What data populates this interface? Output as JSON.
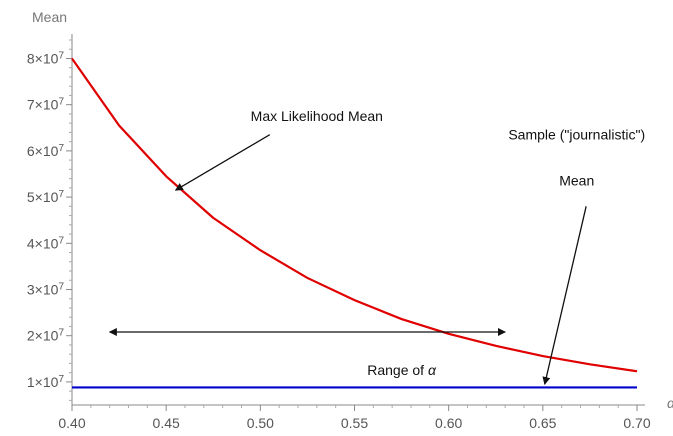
{
  "chart_data": {
    "type": "line",
    "ylabel": "Mean",
    "xlabel": "α",
    "xlim": [
      0.4,
      0.7
    ],
    "ylim": [
      5000000,
      84000000
    ],
    "x_ticks": [
      {
        "value": 0.4,
        "label": "0.40"
      },
      {
        "value": 0.45,
        "label": "0.45"
      },
      {
        "value": 0.5,
        "label": "0.50"
      },
      {
        "value": 0.55,
        "label": "0.55"
      },
      {
        "value": 0.6,
        "label": "0.60"
      },
      {
        "value": 0.65,
        "label": "0.65"
      },
      {
        "value": 0.7,
        "label": "0.70"
      }
    ],
    "y_ticks": [
      {
        "value": 10000000,
        "mant": "1",
        "exp": "7"
      },
      {
        "value": 20000000,
        "mant": "2",
        "exp": "7"
      },
      {
        "value": 30000000,
        "mant": "3",
        "exp": "7"
      },
      {
        "value": 40000000,
        "mant": "4",
        "exp": "7"
      },
      {
        "value": 50000000,
        "mant": "5",
        "exp": "7"
      },
      {
        "value": 60000000,
        "mant": "6",
        "exp": "7"
      },
      {
        "value": 70000000,
        "mant": "7",
        "exp": "7"
      },
      {
        "value": 80000000,
        "mant": "8",
        "exp": "7"
      }
    ],
    "series": [
      {
        "color": "#e00000",
        "x": [
          0.4,
          0.425,
          0.45,
          0.475,
          0.5,
          0.525,
          0.55,
          0.575,
          0.6,
          0.625,
          0.65,
          0.675,
          0.7
        ],
        "values": [
          80000000,
          65500000,
          54500000,
          45500000,
          38500000,
          32500000,
          27700000,
          23600000,
          20400000,
          17800000,
          15600000,
          13800000,
          12300000
        ]
      },
      {
        "color": "#0000cc",
        "x": [
          0.4,
          0.7
        ],
        "values": [
          8800000,
          8800000
        ]
      }
    ],
    "annotations": {
      "max_likelihood": {
        "text": "Max Likelihood Mean",
        "x": 0.53,
        "y": 66500000,
        "arrow_from": [
          0.505,
          63500000
        ],
        "arrow_to": [
          0.455,
          51500000
        ]
      },
      "sample_mean": {
        "line1": "Sample (\"journalistic\")",
        "line2": "Mean",
        "x": 0.668,
        "y": 62500000,
        "line2_y": 52500000,
        "arrow_from": [
          0.673,
          48000000
        ],
        "arrow_to": [
          0.651,
          9500000
        ]
      },
      "range": {
        "text": "Range of ",
        "symbol": "α",
        "x": 0.575,
        "y": 11500000,
        "x_from": 0.42,
        "x_to": 0.63,
        "y_arrow": 20800000
      }
    }
  }
}
